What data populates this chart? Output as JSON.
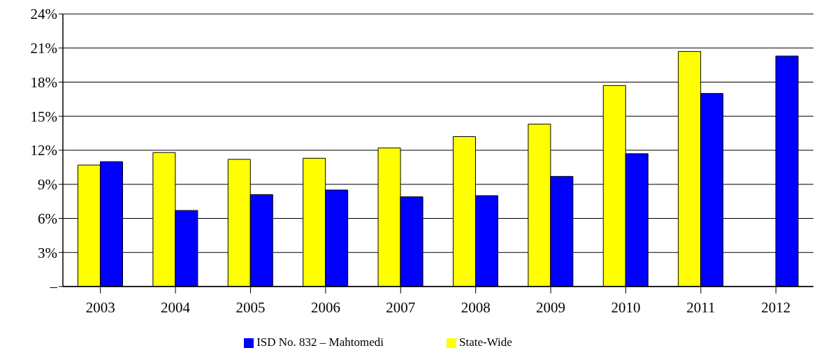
{
  "chart_data": {
    "type": "bar",
    "categories": [
      "2003",
      "2004",
      "2005",
      "2006",
      "2007",
      "2008",
      "2009",
      "2010",
      "2011",
      "2012"
    ],
    "series": [
      {
        "name": "State-Wide",
        "color": "#ffff00",
        "values": [
          10.7,
          11.8,
          11.2,
          11.3,
          12.2,
          13.2,
          14.3,
          17.7,
          20.7,
          null
        ]
      },
      {
        "name": "ISD No. 832 – Mahtomedi",
        "color": "#0000ff",
        "values": [
          11.0,
          6.7,
          8.1,
          8.5,
          7.9,
          8.0,
          9.7,
          11.7,
          17.0,
          20.3
        ]
      }
    ],
    "ylim": [
      0,
      24
    ],
    "yticks": [
      {
        "value": 0,
        "label": "–"
      },
      {
        "value": 3,
        "label": "3%"
      },
      {
        "value": 6,
        "label": "6%"
      },
      {
        "value": 9,
        "label": "9%"
      },
      {
        "value": 12,
        "label": "12%"
      },
      {
        "value": 15,
        "label": "15%"
      },
      {
        "value": 18,
        "label": "18%"
      },
      {
        "value": 21,
        "label": "21%"
      },
      {
        "value": 24,
        "label": "24%"
      }
    ],
    "grid": "y",
    "legend": "bottom"
  }
}
